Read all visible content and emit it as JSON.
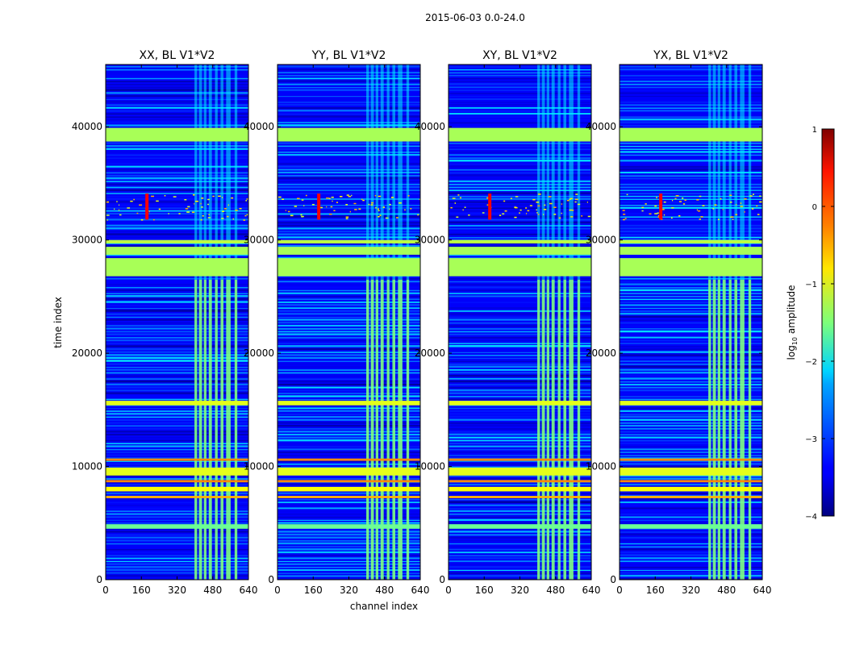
{
  "figure_title": "2015-06-03 0.0-24.0",
  "chart_data": {
    "type": "heatmap",
    "title": "2015-06-03 0.0-24.0",
    "xlabel": "channel index",
    "ylabel": "time index",
    "xlim": [
      0,
      640
    ],
    "ylim": [
      0,
      45500
    ],
    "xticks": [
      0,
      160,
      320,
      480,
      640
    ],
    "yticks": [
      0,
      10000,
      20000,
      30000,
      40000
    ],
    "panels": [
      {
        "title": "XX, BL V1*V2"
      },
      {
        "title": "YY, BL V1*V2"
      },
      {
        "title": "XY, BL V1*V2"
      },
      {
        "title": "YX, BL V1*V2"
      }
    ],
    "colorbar": {
      "label": "log10 amplitude",
      "label_text": "log",
      "label_sub": "10",
      "label_rest": " amplitude",
      "range": [
        -4,
        1
      ],
      "ticks": [
        1,
        0,
        -1,
        -2,
        -3,
        -4
      ],
      "tick_labels": [
        "1",
        "0",
        "−1",
        "−2",
        "−3",
        "−4"
      ],
      "colormap": "jet"
    },
    "bands": [
      {
        "t0": 38700,
        "t1": 39900,
        "value": -1.3
      },
      {
        "t0": 26800,
        "t1": 28400,
        "value": -1.3
      },
      {
        "t0": 28700,
        "t1": 29400,
        "value": -1.3
      },
      {
        "t0": 29700,
        "t1": 30000,
        "value": -1.2
      },
      {
        "t0": 15400,
        "t1": 15800,
        "value": -1.0
      },
      {
        "t0": 10500,
        "t1": 10700,
        "value": -0.3
      },
      {
        "t0": 9200,
        "t1": 9900,
        "value": -1.0
      },
      {
        "t0": 8600,
        "t1": 8800,
        "value": -0.3
      },
      {
        "t0": 7800,
        "t1": 8200,
        "value": -0.9
      },
      {
        "t0": 7200,
        "t1": 7400,
        "value": -0.5
      },
      {
        "t0": 4500,
        "t1": 4900,
        "value": -1.6
      }
    ],
    "rfi_channels": [
      [
        398,
        410
      ],
      [
        418,
        432
      ],
      [
        440,
        452
      ],
      [
        462,
        476
      ],
      [
        490,
        502
      ],
      [
        515,
        528
      ],
      [
        540,
        560
      ],
      [
        578,
        590
      ]
    ],
    "rfi_active_range": [
      0,
      26500
    ],
    "hotspot": {
      "channel": 185,
      "t0": 31800,
      "t1": 34100,
      "value": 0.4
    }
  }
}
